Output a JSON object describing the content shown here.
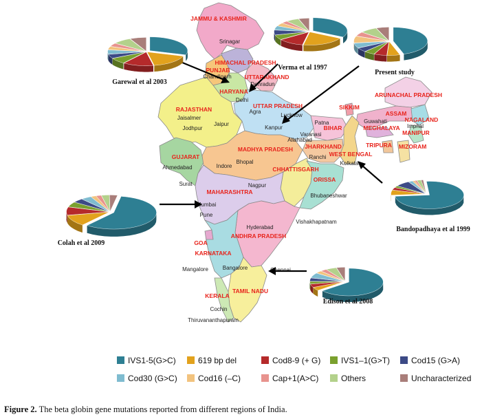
{
  "colors": {
    "IVS1-5(G>C)": "#2e7f93",
    "619 bp del": "#e2a21d",
    "Cod8-9 (+ G)": "#b52a2b",
    "IVS1–1(G>T)": "#7aa02e",
    "Cod15 (G>A)": "#3c4a86",
    "Cod30 (G>C)": "#7fbcd0",
    "Cod16 (–C)": "#f2c37e",
    "Cap+1(A>C)": "#e8938e",
    "Others": "#b3d18b",
    "Uncharacterized": "#a97e7a"
  },
  "legend": [
    {
      "label": "IVS1-5(G>C)",
      "icon": "square-swatch"
    },
    {
      "label": "619 bp del",
      "icon": "square-swatch"
    },
    {
      "label": "Cod8-9 (+ G)",
      "icon": "square-swatch"
    },
    {
      "label": "IVS1–1(G>T)",
      "icon": "square-swatch"
    },
    {
      "label": "Cod15 (G>A)",
      "icon": "square-swatch"
    },
    {
      "label": "Cod30 (G>C)",
      "icon": "square-swatch"
    },
    {
      "label": "Cod16 (–C)",
      "icon": "square-swatch"
    },
    {
      "label": "Cap+1(A>C)",
      "icon": "square-swatch"
    },
    {
      "label": "Others",
      "icon": "square-swatch"
    },
    {
      "label": "Uncharacterized",
      "icon": "square-swatch"
    }
  ],
  "states": [
    "JAMMU & KASHMIR",
    "HIMACHAL PRADESH",
    "PUNJAB",
    "UTTARAKHAND",
    "HARYANA",
    "UTTAR PRADESH",
    "RAJASTHAN",
    "BIHAR",
    "SIKKIM",
    "ARUNACHAL PRADESH",
    "ASSAM",
    "NAGALAND",
    "MEGHALAYA",
    "MANIPUR",
    "TRIPURA",
    "MIZORAM",
    "JHARKHAND",
    "WEST BENGAL",
    "GUJARAT",
    "MADHYA PRADESH",
    "CHHATTISGARH",
    "ORISSA",
    "MAHARASHTRA",
    "ANDHRA PRADESH",
    "GOA",
    "KARNATAKA",
    "TAMIL NADU",
    "KERALA"
  ],
  "cities": [
    "Srinagar",
    "Chandigarh",
    "Dehradun",
    "Delhi",
    "Agra",
    "Lucknow",
    "Jaisalmer",
    "Jaipur",
    "Jodhpur",
    "Kanpur",
    "Patna",
    "Varanasi",
    "Allahabad",
    "Guwahati",
    "Imphal",
    "Ahmedabad",
    "Indore",
    "Bhopal",
    "Ranchi",
    "Kolkata",
    "Surat",
    "Nagpur",
    "Bhubaneshwar",
    "Mumbai",
    "Pune",
    "Hyderabad",
    "Vishakhapatnam",
    "Mangalore",
    "Bangalore",
    "Chennai",
    "Cochin",
    "Thiruvananthapuram"
  ],
  "studies": [
    {
      "label": "Garewal  et al 2003",
      "slices": [
        [
          "IVS1-5(G>C)",
          30
        ],
        [
          "619 bp del",
          17
        ],
        [
          "Cod8-9 (+ G)",
          13
        ],
        [
          "IVS1–1(G>T)",
          7
        ],
        [
          "Cod15 (G>A)",
          5
        ],
        [
          "Cod30 (G>C)",
          5
        ],
        [
          "Cod16 (–C)",
          4
        ],
        [
          "Cap+1(A>C)",
          4
        ],
        [
          "Others",
          8
        ],
        [
          "Uncharacterized",
          7
        ]
      ]
    },
    {
      "label": "Verma et al 1997",
      "slices": [
        [
          "IVS1-5(G>C)",
          33
        ],
        [
          "619 bp del",
          20
        ],
        [
          "Cod8-9 (+ G)",
          12
        ],
        [
          "IVS1–1(G>T)",
          6
        ],
        [
          "Cod15 (G>A)",
          6
        ],
        [
          "Cod30 (G>C)",
          5
        ],
        [
          "Cod16 (–C)",
          4
        ],
        [
          "Cap+1(A>C)",
          3
        ],
        [
          "Others",
          6
        ],
        [
          "Uncharacterized",
          5
        ]
      ]
    },
    {
      "label": "Present study",
      "slices": [
        [
          "IVS1-5(G>C)",
          45
        ],
        [
          "619 bp del",
          6
        ],
        [
          "Cod8-9 (+ G)",
          6
        ],
        [
          "IVS1–1(G>T)",
          5
        ],
        [
          "Cod15 (G>A)",
          5
        ],
        [
          "Cod30 (G>C)",
          6
        ],
        [
          "Cod16 (–C)",
          8
        ],
        [
          "Cap+1(A>C)",
          5
        ],
        [
          "Others",
          8
        ],
        [
          "Uncharacterized",
          6
        ]
      ]
    },
    {
      "label": "Bandopadhaya et al 1999",
      "slices": [
        [
          "IVS1-5(G>C)",
          75
        ],
        [
          "619 bp del",
          6
        ],
        [
          "Cod8-9 (+ G)",
          3
        ],
        [
          "IVS1–1(G>T)",
          2
        ],
        [
          "Cod15 (G>A)",
          7
        ],
        [
          "Cod30 (G>C)",
          2
        ],
        [
          "Cod16 (–C)",
          1
        ],
        [
          "Cap+1(A>C)",
          1
        ],
        [
          "Others",
          2
        ],
        [
          "Uncharacterized",
          1
        ]
      ]
    },
    {
      "label": "Colah et al 2009",
      "slices": [
        [
          "IVS1-5(G>C)",
          58
        ],
        [
          "619 bp del",
          11
        ],
        [
          "Cod8-9 (+ G)",
          8
        ],
        [
          "IVS1–1(G>T)",
          5
        ],
        [
          "Cod15 (G>A)",
          4
        ],
        [
          "Cod30 (G>C)",
          4
        ],
        [
          "Cod16 (–C)",
          2
        ],
        [
          "Cap+1(A>C)",
          2
        ],
        [
          "Others",
          3
        ],
        [
          "Uncharacterized",
          3
        ]
      ]
    },
    {
      "label": "Edison et al 2008",
      "slices": [
        [
          "IVS1-5(G>C)",
          64
        ],
        [
          "619 bp del",
          4
        ],
        [
          "Cod8-9 (+ G)",
          4
        ],
        [
          "IVS1–1(G>T)",
          3
        ],
        [
          "Cod15 (G>A)",
          4
        ],
        [
          "Cod30 (G>C)",
          6
        ],
        [
          "Cod16 (–C)",
          3
        ],
        [
          "Cap+1(A>C)",
          3
        ],
        [
          "Others",
          5
        ],
        [
          "Uncharacterized",
          4
        ]
      ]
    }
  ],
  "caption": {
    "label": "Figure 2.",
    "text": "The beta globin gene mutations reported from different regions of India."
  }
}
